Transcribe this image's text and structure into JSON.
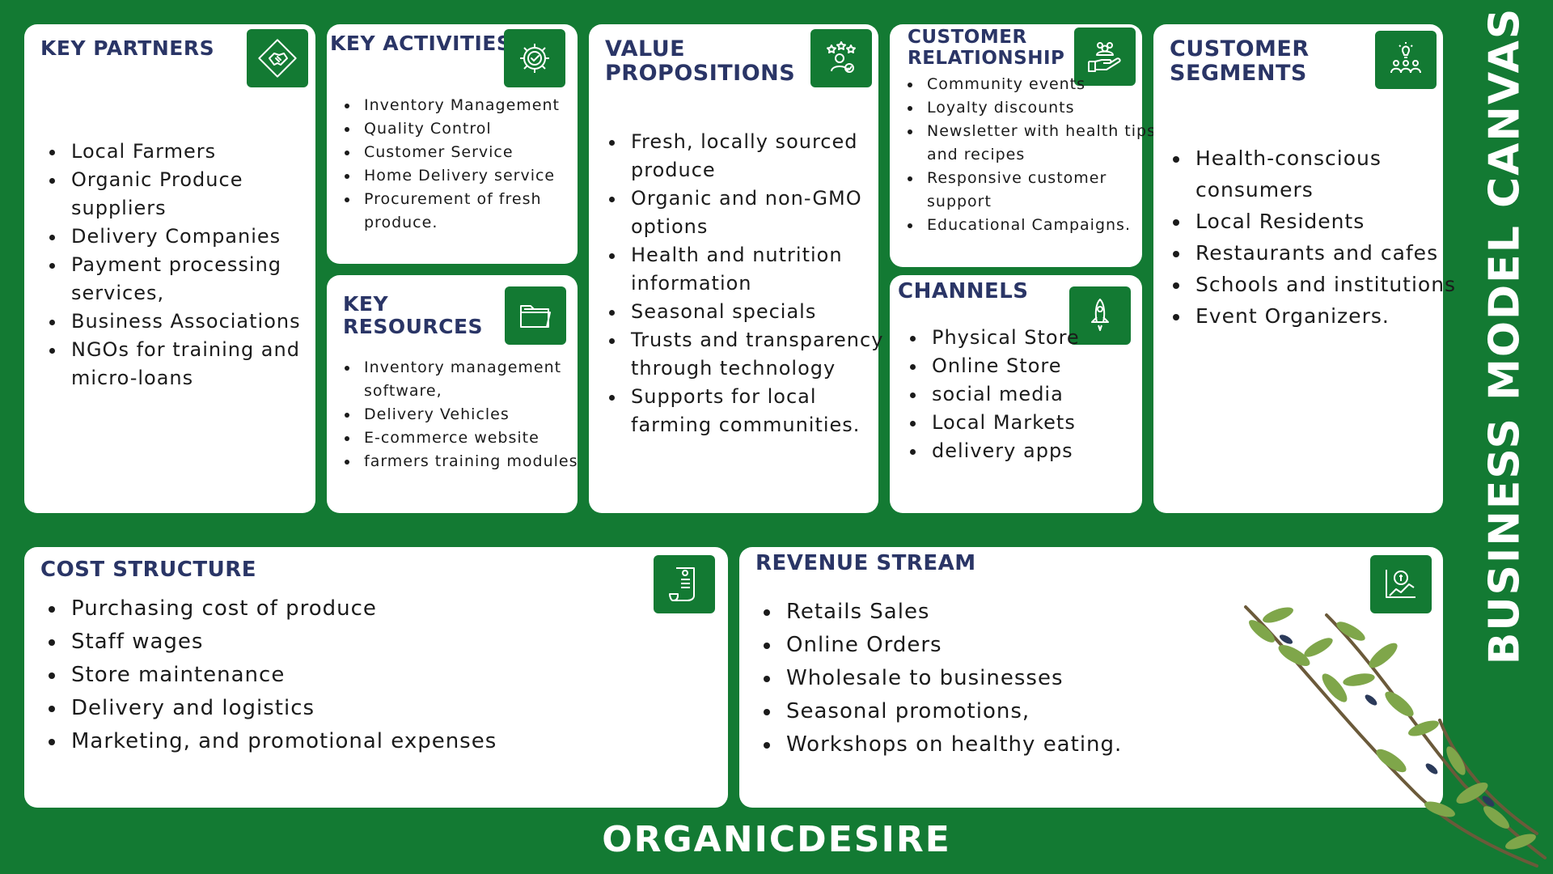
{
  "key_partners": {
    "title": "KEY PARTNERS",
    "icon": "handshake-icon",
    "items": [
      "Local Farmers",
      "Organic Produce suppliers",
      "Delivery Companies",
      "Payment processing services,",
      "Business Associations",
      "NGOs for training and micro-loans"
    ]
  },
  "key_activities": {
    "title": "KEY ACTIVITIES",
    "icon": "gear-check-icon",
    "items": [
      "Inventory Management",
      "Quality Control",
      "Customer Service",
      "Home Delivery service",
      "Procurement of fresh produce."
    ]
  },
  "key_resources": {
    "title": "KEY RESOURCES",
    "icon": "folder-icon",
    "items": [
      "Inventory management software,",
      "Delivery Vehicles",
      "E-commerce website",
      "farmers training modules"
    ]
  },
  "value_propositions": {
    "title": "VALUE PROPOSITIONS",
    "icon": "star-user-icon",
    "items": [
      "Fresh, locally sourced produce",
      "Organic and non-GMO options",
      "Health and nutrition information",
      "Seasonal specials",
      "Trusts and transparency through technology",
      "Supports for local farming communities."
    ]
  },
  "customer_relationship": {
    "title": "CUSTOMER RELATIONSHIP",
    "icon": "hand-people-icon",
    "items": [
      "Community events",
      "Loyalty discounts",
      "Newsletter with health tips and recipes",
      "Responsive customer support",
      "Educational Campaigns."
    ]
  },
  "channels": {
    "title": "CHANNELS",
    "icon": "rocket-icon",
    "items": [
      "Physical Store",
      "Online Store",
      "social media",
      "Local Markets",
      "delivery apps"
    ]
  },
  "customer_segments": {
    "title": "CUSTOMER SEGMENTS",
    "icon": "people-lightbulb-icon",
    "items": [
      "Health-conscious consumers",
      "Local Residents",
      "Restaurants and cafes",
      "Schools and institutions",
      "Event Organizers."
    ]
  },
  "cost_structure": {
    "title": "COST STRUCTURE",
    "icon": "receipt-icon",
    "items": [
      "Purchasing cost of produce",
      "Staff wages",
      "Store maintenance",
      "Delivery and logistics",
      "Marketing, and promotional expenses"
    ]
  },
  "revenue_stream": {
    "title": "REVENUE STREAM",
    "icon": "money-chart-icon",
    "items": [
      "Retails Sales",
      "Online Orders",
      "Wholesale to businesses",
      "Seasonal promotions,",
      "Workshops on healthy eating."
    ]
  },
  "side_title": "BUSINESS MODEL CANVAS",
  "brand_name": "ORGANICDESIRE",
  "colors": {
    "background": "#137a33",
    "card": "#ffffff",
    "heading": "#2a3566",
    "icon_bg": "#137a33"
  }
}
